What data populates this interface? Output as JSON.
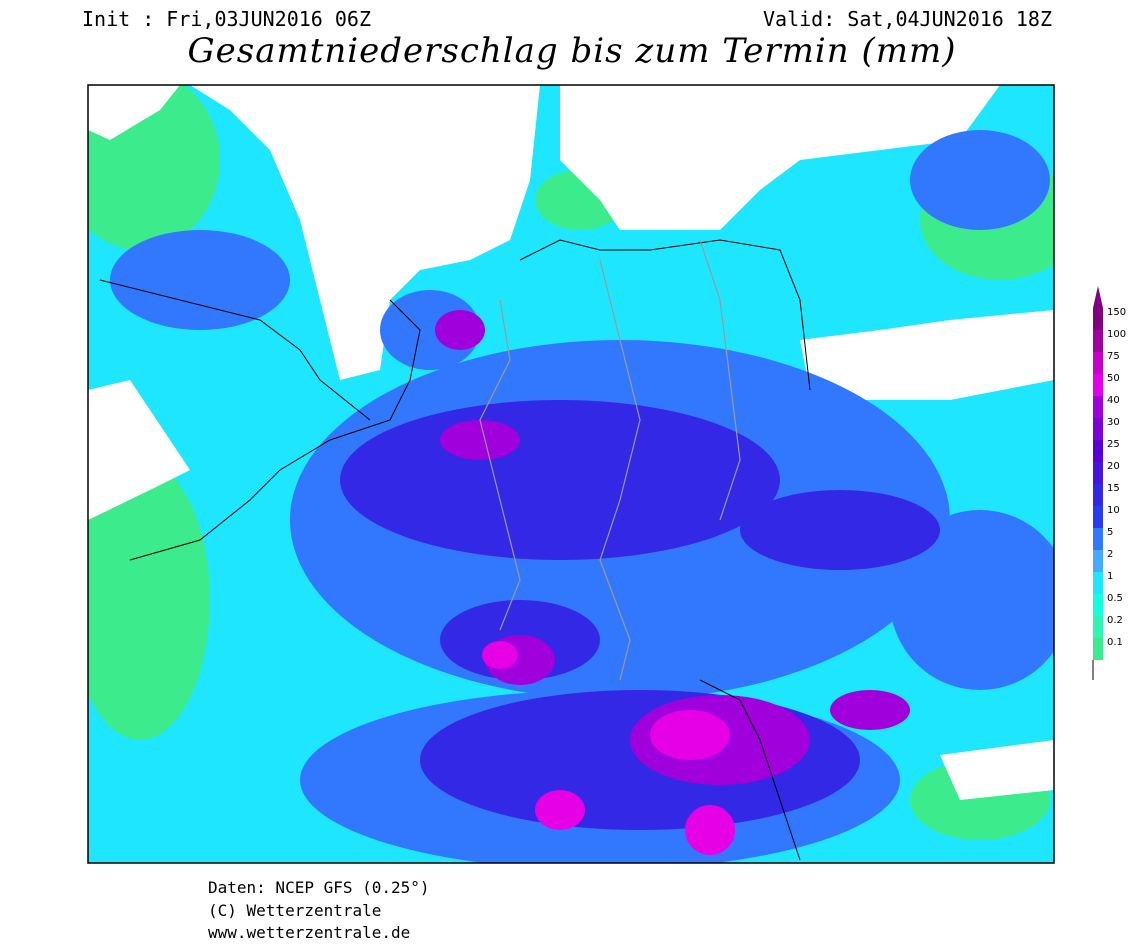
{
  "header": {
    "init": "Init : Fri,03JUN2016 06Z",
    "valid": "Valid: Sat,04JUN2016 18Z",
    "title": "Gesamtniederschlag bis zum Termin (mm)"
  },
  "legend": {
    "levels": [
      {
        "value": 150,
        "color": "#800080"
      },
      {
        "value": 100,
        "color": "#a000a0"
      },
      {
        "value": 75,
        "color": "#c800c8"
      },
      {
        "value": 50,
        "color": "#e600e6"
      },
      {
        "value": 40,
        "color": "#a000dc"
      },
      {
        "value": 30,
        "color": "#7d00d2"
      },
      {
        "value": 25,
        "color": "#5a00d7"
      },
      {
        "value": 20,
        "color": "#4614dc"
      },
      {
        "value": 15,
        "color": "#3228e6"
      },
      {
        "value": 10,
        "color": "#283cf0"
      },
      {
        "value": 5,
        "color": "#3278ff"
      },
      {
        "value": 2,
        "color": "#46aaff"
      },
      {
        "value": 1,
        "color": "#1ee6ff"
      },
      {
        "value": 0.5,
        "color": "#14ffdc"
      },
      {
        "value": 0.2,
        "color": "#32f5b4"
      },
      {
        "value": 0.1,
        "color": "#3ceb8c"
      }
    ]
  },
  "footer": {
    "source": "Daten: NCEP GFS (0.25°)",
    "copyright": "(C) Wetterzentrale",
    "url": "www.wetterzentrale.de"
  }
}
